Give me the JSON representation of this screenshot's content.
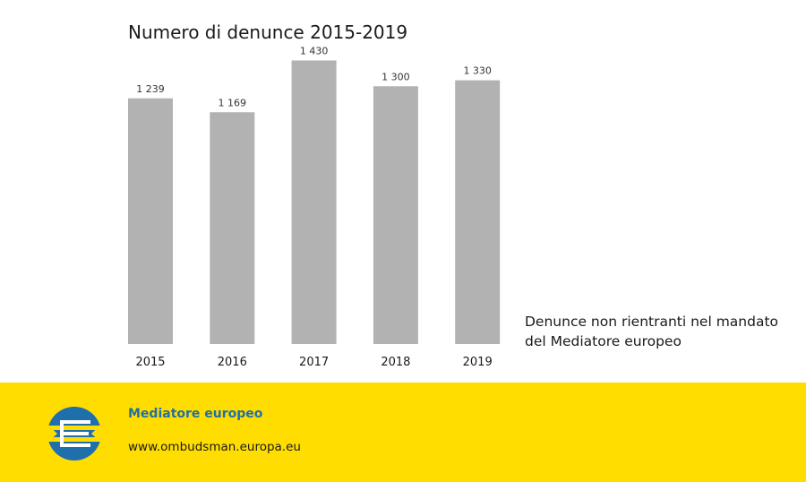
{
  "chart_data": {
    "type": "bar",
    "title": "Numero di denunce 2015-2019",
    "categories": [
      "2015",
      "2016",
      "2017",
      "2018",
      "2019"
    ],
    "values": [
      1239,
      1169,
      1430,
      1300,
      1330
    ],
    "value_labels": [
      "1 239",
      "1 169",
      "1 430",
      "1 300",
      "1 330"
    ],
    "ylim": [
      0,
      1500
    ],
    "grid": false,
    "legend": {
      "position": "right",
      "line1": "Denunce non rientranti nel mandato",
      "line2": "del Mediatore europeo"
    },
    "bar_color": "#b2b2b2"
  },
  "footer": {
    "background": "#ffdd00",
    "brand_name": "Mediatore europeo",
    "url": "www.ombudsman.europa.eu",
    "logo_icon": "european-ombudsman-logo-icon",
    "brand_color": "#1f6fad"
  }
}
